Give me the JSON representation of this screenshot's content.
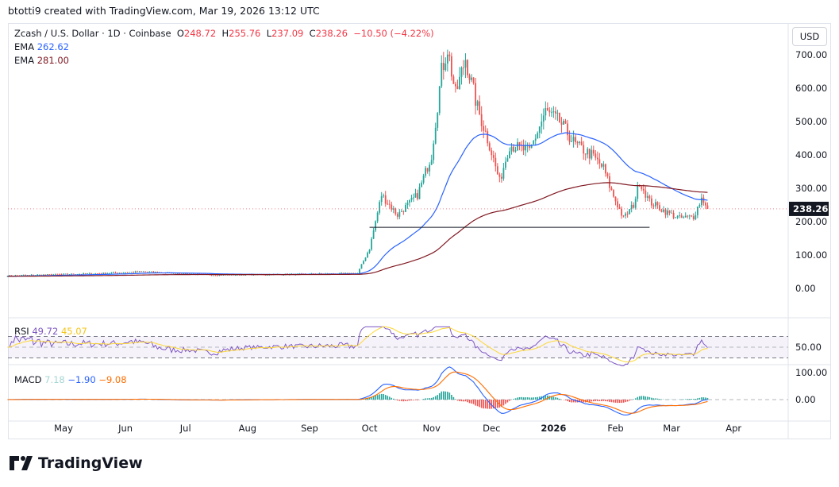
{
  "credit": "btotti9 created with TradingView.com, Mar 19, 2026 13:12 UTC",
  "legend": {
    "symbol": "Zcash / U.S. Dollar · 1D · Coinbase",
    "o_label": "O",
    "o": "248.72",
    "h_label": "H",
    "h": "255.76",
    "l_label": "L",
    "l": "237.09",
    "c_label": "C",
    "c": "238.26",
    "change": "−10.50 (−4.22%)",
    "ema1_label": "EMA",
    "ema1": "262.62",
    "ema2_label": "EMA",
    "ema2": "281.00"
  },
  "currency": "USD",
  "logo": "TradingView",
  "colors": {
    "up": "#26a69a",
    "down": "#ef5350",
    "ema_fast": "#2962ff",
    "ema_slow": "#801922",
    "rsi": "#7e57c2",
    "rsi_ma": "#fdd835",
    "macd": "#2962ff",
    "signal": "#ff6d00"
  },
  "chart_data": {
    "type": "candlestick",
    "symbol": "ZEC/USD",
    "interval": "1D",
    "last_price": "238.26",
    "y_ticks": [
      "700.00",
      "600.00",
      "500.00",
      "400.00",
      "300.00",
      "200.00",
      "100.00",
      "0.00"
    ],
    "ylim": [
      -20,
      760
    ],
    "x_ticks": [
      "May",
      "Jun",
      "Jul",
      "Aug",
      "Sep",
      "Oct",
      "Nov",
      "Dec",
      "2026",
      "Feb",
      "Mar",
      "Apr"
    ],
    "x_tick_dates": [
      "2025-05-01",
      "2025-06-01",
      "2025-07-01",
      "2025-08-01",
      "2025-09-01",
      "2025-10-01",
      "2025-11-01",
      "2025-12-01",
      "2026-01-01",
      "2026-02-01",
      "2026-03-01",
      "2026-04-01"
    ],
    "approx_close_path": [
      [
        "2025-04-03",
        38
      ],
      [
        "2025-05-20",
        45
      ],
      [
        "2025-06-10",
        50
      ],
      [
        "2025-07-15",
        40
      ],
      [
        "2025-08-20",
        42
      ],
      [
        "2025-09-25",
        45
      ],
      [
        "2025-10-01",
        120
      ],
      [
        "2025-10-07",
        280
      ],
      [
        "2025-10-15",
        220
      ],
      [
        "2025-10-25",
        280
      ],
      [
        "2025-11-01",
        400
      ],
      [
        "2025-11-06",
        650
      ],
      [
        "2025-11-09",
        720
      ],
      [
        "2025-11-13",
        580
      ],
      [
        "2025-11-18",
        690
      ],
      [
        "2025-11-24",
        540
      ],
      [
        "2025-11-30",
        430
      ],
      [
        "2025-12-05",
        320
      ],
      [
        "2025-12-10",
        430
      ],
      [
        "2025-12-20",
        410
      ],
      [
        "2025-12-28",
        530
      ],
      [
        "2026-01-04",
        500
      ],
      [
        "2026-01-12",
        430
      ],
      [
        "2026-01-20",
        400
      ],
      [
        "2026-01-26",
        360
      ],
      [
        "2026-01-30",
        290
      ],
      [
        "2026-02-05",
        210
      ],
      [
        "2026-02-10",
        250
      ],
      [
        "2026-02-13",
        320
      ],
      [
        "2026-02-18",
        260
      ],
      [
        "2026-02-26",
        230
      ],
      [
        "2026-03-05",
        210
      ],
      [
        "2026-03-12",
        215
      ],
      [
        "2026-03-16",
        270
      ],
      [
        "2026-03-18",
        255
      ],
      [
        "2026-03-19",
        238.26
      ]
    ],
    "support_line": {
      "price": 183,
      "from": "2025-10-01",
      "to": "2026-02-18"
    },
    "indicators": {
      "ema_fast": {
        "label": "EMA",
        "value": "262.62"
      },
      "ema_slow": {
        "label": "EMA",
        "value": "281.00"
      },
      "rsi": {
        "label": "RSI",
        "value": "49.72",
        "ma": "45.07",
        "tick": "50.00",
        "bands": [
          70,
          30
        ]
      },
      "macd": {
        "label": "MACD",
        "hist": "7.18",
        "macd": "−1.90",
        "signal": "−9.08",
        "ticks": [
          "100.00",
          "0.00"
        ]
      }
    }
  }
}
